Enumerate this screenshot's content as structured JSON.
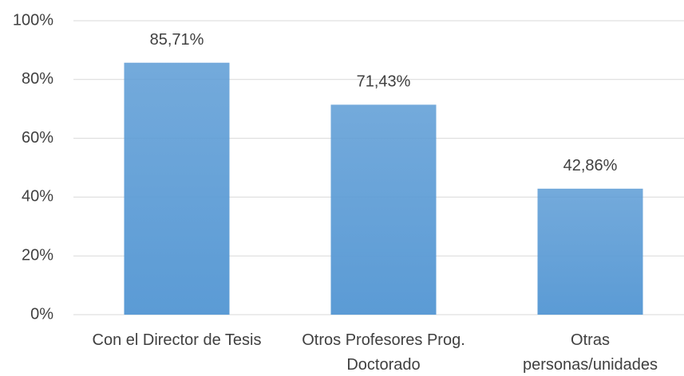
{
  "chart_data": {
    "type": "bar",
    "categories": [
      "Con el Director de Tesis",
      "Otros Profesores Prog. Doctorado",
      "Otras personas/unidades"
    ],
    "values": [
      85.71,
      71.43,
      42.86
    ],
    "value_labels": [
      "85,71%",
      "71,43%",
      "42,86%"
    ],
    "color": "#5b9bd5",
    "ylim": [
      0,
      100
    ],
    "yticks": [
      {
        "value": 0,
        "label": "0%"
      },
      {
        "value": 20,
        "label": "20%"
      },
      {
        "value": 40,
        "label": "40%"
      },
      {
        "value": 60,
        "label": "60%"
      },
      {
        "value": 80,
        "label": "80%"
      },
      {
        "value": 100,
        "label": "100%"
      }
    ],
    "grid": true
  }
}
